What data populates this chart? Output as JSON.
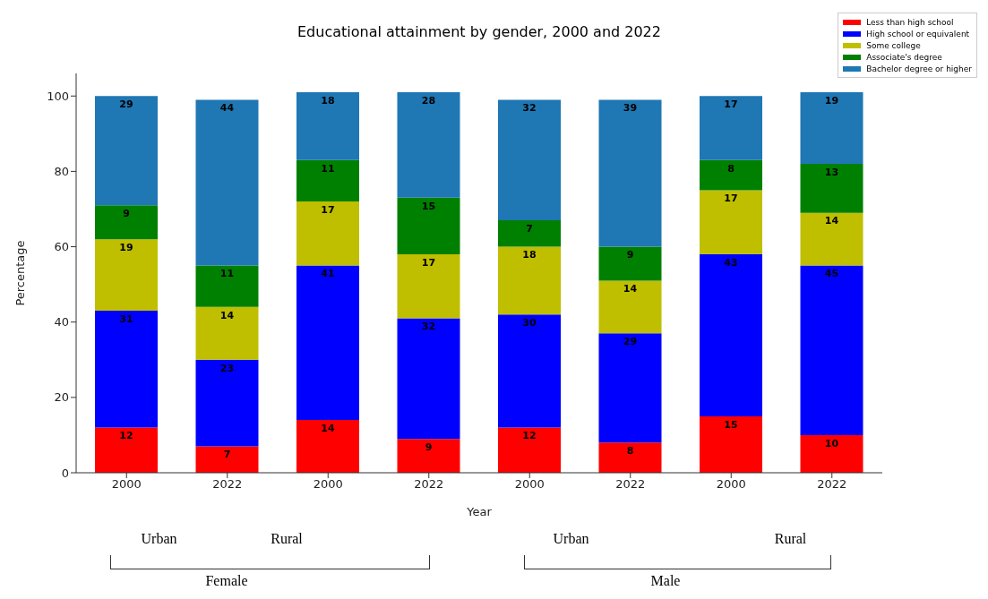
{
  "chart_data": {
    "type": "bar",
    "title": "Educational attainment by gender, 2000 and 2022",
    "xlabel": "Year",
    "ylabel": "Percentage",
    "categories": [
      "2000",
      "2022",
      "2000",
      "2022",
      "2000",
      "2022",
      "2000",
      "2022"
    ],
    "series": [
      {
        "name": "Less than high school",
        "color": "#ff0000",
        "values": [
          12,
          7,
          14,
          9,
          12,
          8,
          15,
          10
        ]
      },
      {
        "name": "High school or equivalent",
        "color": "#0000ff",
        "values": [
          31,
          23,
          41,
          32,
          30,
          29,
          43,
          45
        ]
      },
      {
        "name": "Some college",
        "color": "#bfbf00",
        "values": [
          19,
          14,
          17,
          17,
          18,
          14,
          17,
          14
        ]
      },
      {
        "name": "Associate's degree",
        "color": "#008000",
        "values": [
          9,
          11,
          11,
          15,
          7,
          9,
          8,
          13
        ]
      },
      {
        "name": "Bachelor degree or higher",
        "color": "#1f77b4",
        "values": [
          29,
          44,
          18,
          28,
          32,
          39,
          17,
          19
        ]
      }
    ],
    "stacked": true,
    "data_labels": true,
    "ylim": [
      0,
      106
    ],
    "yticks": [
      0,
      20,
      40,
      60,
      80,
      100
    ],
    "grid": false,
    "legend": "top right",
    "annotations": [
      "Urban",
      "Rural",
      "Urban",
      "Rural",
      "Female",
      "Male"
    ]
  }
}
